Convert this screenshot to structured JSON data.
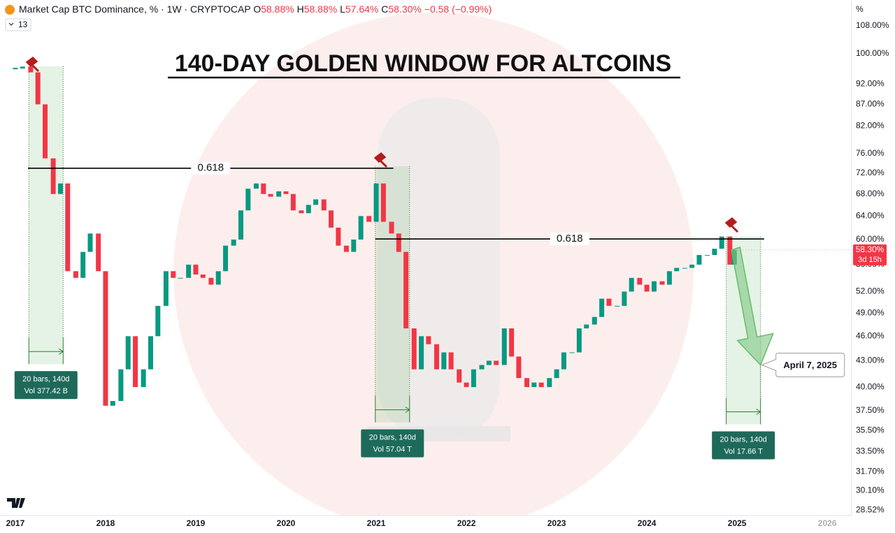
{
  "header": {
    "symbol": "Market Cap BTC Dominance, % · 1W · CRYPTOCAP",
    "o_key": "O",
    "o_val": "58.88%",
    "h_key": "H",
    "h_val": "58.88%",
    "l_key": "L",
    "l_val": "57.64%",
    "c_key": "C",
    "c_val": "58.30%",
    "change": "−0.58 (−0.99%)",
    "indicators": "13"
  },
  "chart_data": {
    "type": "candlestick",
    "title": "140-DAY GOLDEN WINDOW FOR ALTCOINS",
    "log_scale": true,
    "grid": false,
    "up_color": "#089981",
    "down_color": "#f23645",
    "x": [
      2017.0,
      2017.08,
      2017.17,
      2017.25,
      2017.33,
      2017.42,
      2017.5,
      2017.58,
      2017.67,
      2017.75,
      2017.83,
      2017.92,
      2018.0,
      2018.08,
      2018.17,
      2018.25,
      2018.33,
      2018.42,
      2018.5,
      2018.58,
      2018.67,
      2018.75,
      2018.83,
      2018.92,
      2019.0,
      2019.08,
      2019.17,
      2019.25,
      2019.33,
      2019.42,
      2019.5,
      2019.58,
      2019.67,
      2019.75,
      2019.83,
      2019.92,
      2020.0,
      2020.08,
      2020.17,
      2020.25,
      2020.33,
      2020.42,
      2020.5,
      2020.58,
      2020.67,
      2020.75,
      2020.83,
      2020.92,
      2021.0,
      2021.08,
      2021.17,
      2021.25,
      2021.33,
      2021.42,
      2021.5,
      2021.58,
      2021.67,
      2021.75,
      2021.83,
      2021.92,
      2022.0,
      2022.08,
      2022.17,
      2022.25,
      2022.33,
      2022.42,
      2022.5,
      2022.58,
      2022.67,
      2022.75,
      2022.83,
      2022.92,
      2023.0,
      2023.08,
      2023.17,
      2023.25,
      2023.33,
      2023.42,
      2023.5,
      2023.58,
      2023.67,
      2023.75,
      2023.83,
      2023.92,
      2024.0,
      2024.08,
      2024.17,
      2024.25,
      2024.33,
      2024.42,
      2024.5,
      2024.58,
      2024.67,
      2024.75,
      2024.83,
      2024.92,
      2024.97
    ],
    "values": [
      96,
      96.5,
      95,
      87,
      75,
      68,
      70,
      55,
      54,
      58,
      61,
      55,
      38,
      38.5,
      42,
      46,
      40,
      42,
      46,
      50,
      55,
      54,
      54,
      56,
      54.5,
      54,
      53,
      55,
      59,
      60,
      65,
      69,
      70,
      68,
      67.5,
      68.5,
      68,
      65,
      64.5,
      66,
      67,
      65,
      62,
      59,
      58,
      60,
      64,
      63,
      70,
      63,
      61,
      58,
      47,
      42,
      46,
      45,
      42,
      44,
      42,
      40.5,
      40,
      42,
      42.5,
      43,
      42.5,
      47,
      43.5,
      41,
      40,
      40.5,
      40,
      41,
      42,
      44,
      44,
      47,
      47.5,
      48.5,
      51,
      50,
      50,
      52,
      54,
      53,
      52,
      53.5,
      53,
      55,
      55.5,
      55.5,
      56,
      57.5,
      57.5,
      58.5,
      60.5,
      56,
      58.3
    ],
    "xlim": [
      2016.83,
      2026.27
    ],
    "xticks": [
      2017,
      2018,
      2019,
      2020,
      2021,
      2022,
      2023,
      2024,
      2025,
      2026
    ],
    "ylim": [
      28.1,
      115.9
    ],
    "y_unit": "%",
    "yticks": [
      {
        "value": 108,
        "label": "108.00%"
      },
      {
        "value": 100,
        "label": "100.00%"
      },
      {
        "value": 92,
        "label": "92.00%"
      },
      {
        "value": 87,
        "label": "87.00%"
      },
      {
        "value": 82,
        "label": "82.00%"
      },
      {
        "value": 76,
        "label": "76.00%"
      },
      {
        "value": 72,
        "label": "72.00%"
      },
      {
        "value": 68,
        "label": "68.00%"
      },
      {
        "value": 64,
        "label": "64.00%"
      },
      {
        "value": 60,
        "label": "60.00%"
      },
      {
        "value": 56,
        "label": "56.00%"
      },
      {
        "value": 52,
        "label": "52.00%"
      },
      {
        "value": 49,
        "label": "49.00%"
      },
      {
        "value": 46,
        "label": "46.00%"
      },
      {
        "value": 43,
        "label": "43.00%"
      },
      {
        "value": 40,
        "label": "40.00%"
      },
      {
        "value": 37.5,
        "label": "37.50%"
      },
      {
        "value": 35.5,
        "label": "35.50%"
      },
      {
        "value": 33.5,
        "label": "33.50%"
      },
      {
        "value": 31.7,
        "label": "31.70%"
      },
      {
        "value": 30.1,
        "label": "30.10%"
      },
      {
        "value": 28.52,
        "label": "28.52%"
      }
    ],
    "last_label": "58.30%",
    "countdown": "3d 15h",
    "levels": [
      {
        "label": "0.618",
        "value": 73.0,
        "x": [
          2017.14,
          2021.19
        ]
      },
      {
        "label": "0.618",
        "value": 60.1,
        "x": [
          2020.99,
          2025.3
        ]
      }
    ],
    "windows": [
      {
        "x": [
          2017.15,
          2017.53
        ],
        "y": [
          96.6,
          42.6
        ],
        "bars": "20 bars, 140d",
        "vol": "Vol 377.42 B"
      },
      {
        "x": [
          2020.99,
          2021.37
        ],
        "y": [
          73.4,
          36.3
        ],
        "bars": "20 bars, 140d",
        "vol": "Vol 57.04 T"
      },
      {
        "x": [
          2024.88,
          2025.26
        ],
        "y": [
          60.5,
          36.1
        ],
        "bars": "20 bars, 140d",
        "vol": "Vol 17.66 T"
      }
    ],
    "target": {
      "label": "April 7, 2025",
      "x": 2025.26,
      "value": 42.5
    }
  }
}
